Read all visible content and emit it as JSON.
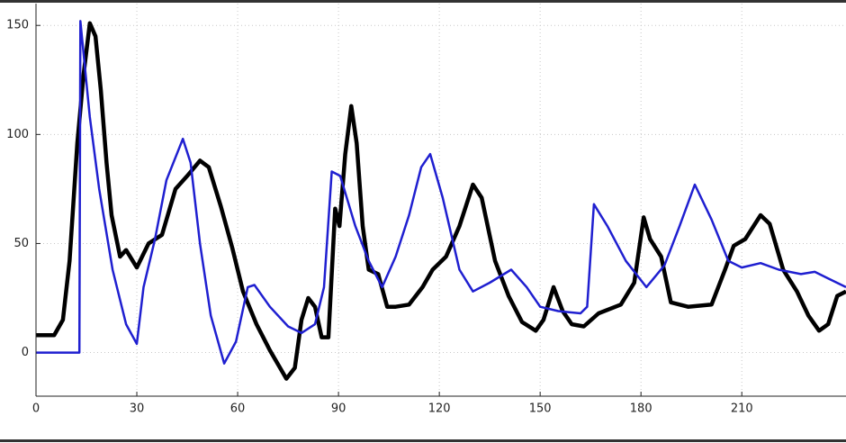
{
  "chart_data": {
    "type": "line",
    "xlim": [
      0,
      241
    ],
    "ylim": [
      -20,
      160
    ],
    "xticks": [
      0,
      30,
      60,
      90,
      120,
      150,
      180,
      210
    ],
    "yticks": [
      0,
      50,
      100,
      150
    ],
    "grid": true,
    "series": [
      {
        "color": "#000000",
        "x": [
          0,
          5.4,
          8,
          10,
          12.3,
          14.2,
          16,
          17.7,
          19.3,
          21,
          22.5,
          25,
          26.8,
          30,
          33.5,
          37.5,
          41.5,
          45,
          48.8,
          51.4,
          55,
          58.4,
          61.6,
          65.6,
          69.6,
          74.5,
          77,
          79,
          81,
          83,
          85,
          87,
          89,
          90.3,
          92,
          93.8,
          95.4,
          97.2,
          99,
          101.8,
          104.5,
          107,
          111,
          115,
          118,
          122,
          126,
          130,
          132.6,
          136.6,
          140.6,
          144.6,
          148.7,
          151,
          154,
          156.7,
          159.4,
          163,
          167.4,
          174,
          178,
          180.8,
          182.7,
          186,
          188.9,
          194,
          201,
          205,
          207.6,
          211,
          215.6,
          218.3,
          222.3,
          226.4,
          229.8,
          233,
          235.7,
          238.4,
          241
        ],
        "values": [
          8,
          8,
          15,
          42,
          96,
          128,
          151,
          145,
          120,
          87,
          63,
          44,
          47,
          39,
          50,
          54,
          75,
          81,
          88,
          85,
          67,
          48,
          28,
          13,
          1,
          -12,
          -7,
          15,
          25,
          21,
          7,
          7,
          66,
          58,
          91,
          113,
          96,
          58,
          38,
          36,
          21,
          21,
          22,
          30,
          38,
          44,
          58,
          77,
          71,
          42,
          26,
          14,
          10,
          15,
          30,
          19,
          13,
          12,
          18,
          22,
          32,
          62,
          52,
          44,
          23,
          21,
          22,
          38,
          49,
          52,
          63,
          59,
          38,
          28,
          17,
          10,
          13,
          26,
          28
        ]
      },
      {
        "color": "#1f1fd0",
        "x": [
          0,
          12.9,
          13.2,
          16,
          18.8,
          22.8,
          26.8,
          30,
          32,
          35.4,
          38.8,
          43.7,
          46,
          48.8,
          52,
          56,
          59.5,
          63,
          65,
          69.6,
          75,
          79,
          83,
          85.7,
          88,
          90.5,
          95,
          99,
          103,
          107,
          111,
          114.6,
          117.3,
          121,
          126,
          130,
          135,
          141.4,
          146,
          150,
          155.4,
          162,
          164,
          166,
          170,
          175.5,
          181.6,
          187,
          191.5,
          196,
          201,
          206,
          210,
          215.6,
          221,
          227.6,
          231.7,
          235.7,
          241
        ],
        "values": [
          0,
          0,
          152,
          108,
          75,
          38,
          13,
          4,
          30,
          52,
          79,
          98,
          87,
          50,
          17,
          -5,
          5,
          30,
          31,
          21,
          12,
          9,
          13,
          30,
          83,
          81,
          58,
          42,
          30,
          44,
          63,
          85,
          91,
          71,
          38,
          28,
          32,
          38,
          30,
          21,
          19,
          18,
          21,
          68,
          58,
          42,
          30,
          40,
          58,
          77,
          61,
          42,
          39,
          41,
          38,
          36,
          37,
          34,
          30
        ]
      }
    ]
  }
}
